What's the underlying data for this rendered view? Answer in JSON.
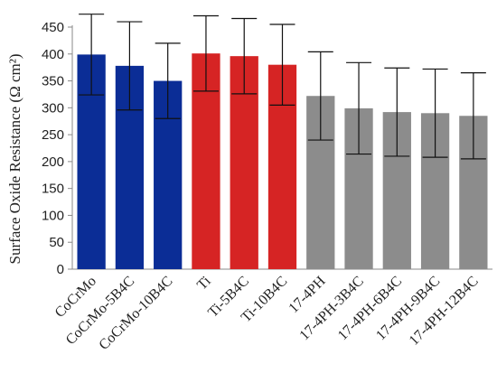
{
  "chart_data": {
    "type": "bar",
    "title": "",
    "xlabel": "",
    "ylabel": "Surface Oxide Resistance (Ω cm²)",
    "ylim": [
      0,
      450
    ],
    "yticks": [
      0,
      50,
      100,
      150,
      200,
      250,
      300,
      350,
      400,
      450
    ],
    "grid": false,
    "legend": "none",
    "categories": [
      "CoCrMo",
      "CoCrMo-5B4C",
      "CoCrMo-10B4C",
      "Ti",
      "Ti-5B4C",
      "Ti-10B4C",
      "17-4PH",
      "17-4PH-3B4C",
      "17-4PH-6B4C",
      "17-4PH-9B4C",
      "17-4PH-12B4C"
    ],
    "values": [
      399,
      378,
      350,
      401,
      396,
      380,
      322,
      299,
      292,
      290,
      285
    ],
    "errors": [
      75,
      82,
      70,
      70,
      70,
      75,
      82,
      85,
      82,
      82,
      80
    ],
    "bar_colors": [
      "#0b2d96",
      "#0b2d96",
      "#0b2d96",
      "#d62424",
      "#d62424",
      "#d62424",
      "#8c8c8c",
      "#8c8c8c",
      "#8c8c8c",
      "#8c8c8c",
      "#8c8c8c"
    ]
  }
}
